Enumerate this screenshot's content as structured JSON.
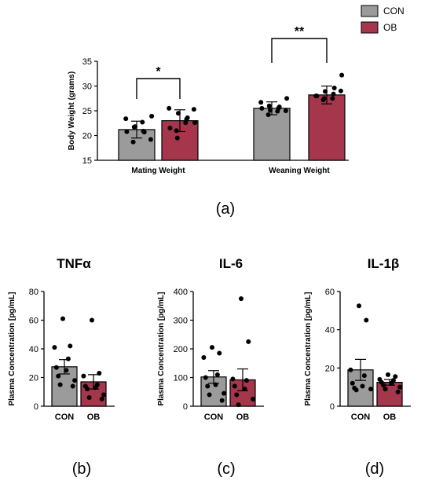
{
  "colors": {
    "CON": "#9b9b9b",
    "OB": "#a6364b",
    "axis": "#000000"
  },
  "legend": {
    "placement": "top-right",
    "entries": [
      "CON",
      "OB"
    ]
  },
  "chart_data": [
    {
      "panel": "(a)",
      "type": "bar",
      "title": "",
      "xlabel": "",
      "ylabel": "Body Weight (grams)",
      "ylim": [
        15,
        35
      ],
      "yticks": [
        15,
        20,
        25,
        30,
        35
      ],
      "categories": [
        "Mating Weight",
        "Weaning Weight"
      ],
      "series": [
        {
          "name": "CON",
          "values": [
            21.2,
            25.5
          ],
          "sd": [
            1.7,
            1.3
          ],
          "points": [
            [
              21.8,
              22.7,
              20.8,
              19.2,
              21.7,
              20.9,
              23.4,
              23.9,
              18.7,
              20.7
            ],
            [
              25.1,
              24.9,
              25.5,
              25.0,
              26.0,
              25.5,
              26.7,
              27.5,
              24.2,
              25.8
            ]
          ]
        },
        {
          "name": "OB",
          "values": [
            23.0,
            28.2
          ],
          "sd": [
            2.2,
            1.8
          ],
          "points": [
            [
              24.5,
              22.6,
              21.5,
              25.3,
              19.5,
              23.3,
              25.5,
              22.6,
              21.0,
              23.6
            ],
            [
              28.9,
              27.5,
              28.0,
              29.0,
              27.5,
              28.4,
              28.0,
              32.2,
              27.2,
              29.6
            ]
          ]
        }
      ],
      "significance": [
        {
          "category": "Mating Weight",
          "label": "*"
        },
        {
          "category": "Weaning Weight",
          "label": "**"
        }
      ]
    },
    {
      "panel": "(b)",
      "type": "bar",
      "title": "TNFα",
      "xlabel": "",
      "ylabel": "Plasma Concentration [pg/mL]",
      "ylim": [
        0,
        80
      ],
      "yticks": [
        0,
        20,
        40,
        60,
        80
      ],
      "categories": [
        "CON",
        "OB"
      ],
      "values": [
        27.5,
        17.0
      ],
      "sem": [
        5.0,
        5.0
      ],
      "points": [
        [
          61.0,
          42.0,
          41.0,
          33.0,
          27.0,
          25.0,
          21.0,
          18.0,
          15.0,
          14.0
        ],
        [
          60.0,
          23.0,
          21.0,
          15.0,
          14.0,
          13.0,
          12.0,
          8.0,
          6.0,
          5.0
        ]
      ]
    },
    {
      "panel": "(c)",
      "type": "bar",
      "title": "IL-6",
      "xlabel": "",
      "ylabel": "Plasma Concentration [pg/mL]",
      "ylim": [
        0,
        400
      ],
      "yticks": [
        0,
        100,
        200,
        300,
        400
      ],
      "categories": [
        "CON",
        "OB"
      ],
      "values": [
        102,
        92
      ],
      "sem": [
        22,
        38
      ],
      "points": [
        [
          205,
          185,
          170,
          110,
          100,
          75,
          70,
          45,
          40,
          20
        ],
        [
          375,
          225,
          95,
          90,
          70,
          60,
          40,
          25,
          5
        ]
      ]
    },
    {
      "panel": "(d)",
      "type": "bar",
      "title": "IL-1β",
      "xlabel": "",
      "ylabel": "Plasma Concentration [pg/mL]",
      "ylim": [
        0,
        60
      ],
      "yticks": [
        0,
        20,
        40,
        60
      ],
      "categories": [
        "CON",
        "OB"
      ],
      "values": [
        19.0,
        12.5
      ],
      "sem": [
        5.5,
        1.5
      ],
      "points": [
        [
          52.5,
          45.0,
          19.0,
          16.0,
          12.0,
          10.5,
          9.5,
          9.0,
          8.5
        ],
        [
          16.5,
          15.5,
          14.0,
          13.5,
          12.5,
          12.0,
          11.0,
          10.0,
          9.0,
          7.5
        ]
      ]
    }
  ]
}
